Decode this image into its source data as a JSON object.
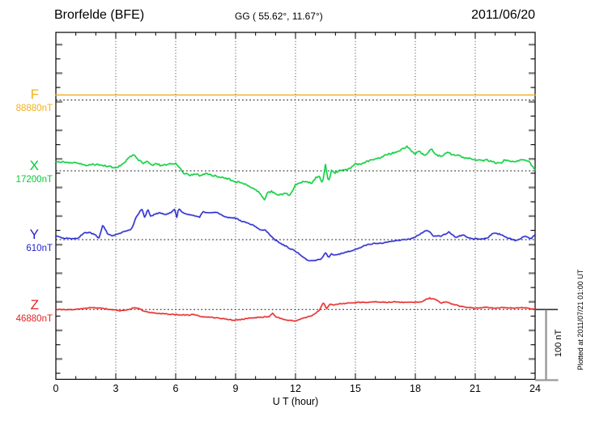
{
  "header": {
    "station": "Brorfelde (BFE)",
    "coordinates": "GG ( 55.62°,  11.67°)",
    "date": "2011/06/20"
  },
  "axes": {
    "xlabel": "U T (hour)",
    "xticks": [
      "0",
      "3",
      "6",
      "9",
      "12",
      "15",
      "18",
      "21",
      "24"
    ],
    "scale_bar_label": "100 nT",
    "plotted_at": "Plotted at 2011/07/21 01:00 UT"
  },
  "channels": [
    {
      "letter": "F",
      "value_label": "88880nT",
      "color": "#F0B01E"
    },
    {
      "letter": "X",
      "value_label": "17200nT",
      "color": "#00CC33"
    },
    {
      "letter": "Y",
      "value_label": "610nT",
      "color": "#2222CC"
    },
    {
      "letter": "Z",
      "value_label": "46880nT",
      "color": "#E62222"
    }
  ],
  "chart_data": {
    "type": "line",
    "title": "Brorfelde (BFE) magnetogram 2011/06/20",
    "xlabel": "U T (hour)",
    "x_range": [
      0,
      24
    ],
    "x_ticks": [
      0,
      3,
      6,
      9,
      12,
      15,
      18,
      21,
      24
    ],
    "grid": "vertical dotted every 3 hours, dotted horizontal reference line per channel",
    "y_scale_reference": "100 nT",
    "legend_position": "left margin channel labels",
    "series": [
      {
        "name": "F",
        "units": "nT",
        "reference_value": 88880,
        "color": "#F0B01E",
        "points": [
          [
            0,
            88887
          ],
          [
            24,
            88887
          ]
        ]
      },
      {
        "name": "X",
        "units": "nT",
        "reference_value": 17200,
        "color": "#00CC33",
        "points": [
          [
            0,
            17213
          ],
          [
            0.5,
            17212
          ],
          [
            1,
            17211
          ],
          [
            1.5,
            17208
          ],
          [
            2,
            17209
          ],
          [
            2.5,
            17207
          ],
          [
            3,
            17204
          ],
          [
            3.3,
            17208
          ],
          [
            3.6,
            17217
          ],
          [
            3.9,
            17223
          ],
          [
            4.1,
            17216
          ],
          [
            4.4,
            17210
          ],
          [
            4.6,
            17214
          ],
          [
            4.8,
            17208
          ],
          [
            5,
            17210
          ],
          [
            5.3,
            17207
          ],
          [
            5.6,
            17209
          ],
          [
            6,
            17211
          ],
          [
            6.2,
            17204
          ],
          [
            6.4,
            17197
          ],
          [
            6.7,
            17194
          ],
          [
            7,
            17196
          ],
          [
            7.2,
            17193
          ],
          [
            7.5,
            17196
          ],
          [
            7.8,
            17194
          ],
          [
            8.1,
            17192
          ],
          [
            8.4,
            17190
          ],
          [
            8.7,
            17188
          ],
          [
            9,
            17185
          ],
          [
            9.3,
            17183
          ],
          [
            9.6,
            17179
          ],
          [
            9.9,
            17175
          ],
          [
            10.1,
            17172
          ],
          [
            10.3,
            17165
          ],
          [
            10.45,
            17159
          ],
          [
            10.6,
            17169
          ],
          [
            10.8,
            17171
          ],
          [
            11,
            17168
          ],
          [
            11.2,
            17166
          ],
          [
            11.5,
            17168
          ],
          [
            11.7,
            17166
          ],
          [
            11.85,
            17172
          ],
          [
            12,
            17181
          ],
          [
            12.2,
            17182
          ],
          [
            12.5,
            17186
          ],
          [
            12.8,
            17182
          ],
          [
            13,
            17190
          ],
          [
            13.2,
            17193
          ],
          [
            13.35,
            17182
          ],
          [
            13.5,
            17208
          ],
          [
            13.65,
            17183
          ],
          [
            13.8,
            17201
          ],
          [
            13.95,
            17197
          ],
          [
            14.2,
            17200
          ],
          [
            14.5,
            17201
          ],
          [
            14.8,
            17205
          ],
          [
            15,
            17210
          ],
          [
            15.3,
            17209
          ],
          [
            15.6,
            17213
          ],
          [
            16,
            17217
          ],
          [
            16.3,
            17219
          ],
          [
            16.6,
            17223
          ],
          [
            17,
            17226
          ],
          [
            17.3,
            17230
          ],
          [
            17.6,
            17234
          ],
          [
            17.8,
            17228
          ],
          [
            18,
            17224
          ],
          [
            18.2,
            17227
          ],
          [
            18.5,
            17221
          ],
          [
            18.8,
            17232
          ],
          [
            19,
            17223
          ],
          [
            19.3,
            17220
          ],
          [
            19.6,
            17226
          ],
          [
            19.9,
            17222
          ],
          [
            20.2,
            17221
          ],
          [
            20.5,
            17218
          ],
          [
            21,
            17216
          ],
          [
            21.3,
            17214
          ],
          [
            21.6,
            17215
          ],
          [
            22,
            17211
          ],
          [
            22.3,
            17210
          ],
          [
            22.5,
            17216
          ],
          [
            22.8,
            17212
          ],
          [
            23.1,
            17214
          ],
          [
            23.4,
            17216
          ],
          [
            23.7,
            17213
          ],
          [
            24,
            17201
          ]
        ]
      },
      {
        "name": "Y",
        "units": "nT",
        "reference_value": 610,
        "color": "#2222CC",
        "points": [
          [
            0,
            615
          ],
          [
            0.4,
            612
          ],
          [
            0.8,
            611
          ],
          [
            1.1,
            612
          ],
          [
            1.4,
            619
          ],
          [
            1.7,
            620
          ],
          [
            2,
            616
          ],
          [
            2.15,
            611
          ],
          [
            2.35,
            630
          ],
          [
            2.6,
            618
          ],
          [
            2.8,
            615
          ],
          [
            3,
            617
          ],
          [
            3.3,
            620
          ],
          [
            3.6,
            623
          ],
          [
            3.8,
            625
          ],
          [
            4,
            640
          ],
          [
            4.3,
            654
          ],
          [
            4.45,
            640
          ],
          [
            4.6,
            653
          ],
          [
            4.75,
            642
          ],
          [
            4.9,
            645
          ],
          [
            5.2,
            648
          ],
          [
            5.5,
            645
          ],
          [
            5.8,
            649
          ],
          [
            5.95,
            653
          ],
          [
            6.05,
            640
          ],
          [
            6.15,
            654
          ],
          [
            6.3,
            649
          ],
          [
            6.6,
            645
          ],
          [
            6.9,
            644
          ],
          [
            7.2,
            642
          ],
          [
            7.35,
            649
          ],
          [
            7.5,
            648
          ],
          [
            7.8,
            648
          ],
          [
            8.1,
            648
          ],
          [
            8.4,
            643
          ],
          [
            8.7,
            641
          ],
          [
            9,
            640
          ],
          [
            9.3,
            636
          ],
          [
            9.6,
            633
          ],
          [
            9.9,
            630
          ],
          [
            10.2,
            624
          ],
          [
            10.5,
            623
          ],
          [
            10.9,
            611
          ],
          [
            11.3,
            604
          ],
          [
            11.7,
            598
          ],
          [
            12.1,
            592
          ],
          [
            12.6,
            581
          ],
          [
            13,
            581
          ],
          [
            13.3,
            583
          ],
          [
            13.5,
            592
          ],
          [
            13.65,
            585
          ],
          [
            13.8,
            590
          ],
          [
            14,
            588
          ],
          [
            14.5,
            592
          ],
          [
            15,
            596
          ],
          [
            15.5,
            602
          ],
          [
            16,
            605
          ],
          [
            16.3,
            605
          ],
          [
            16.7,
            607
          ],
          [
            17.2,
            609
          ],
          [
            17.9,
            612
          ],
          [
            18.3,
            619
          ],
          [
            18.5,
            623
          ],
          [
            18.7,
            622
          ],
          [
            18.9,
            615
          ],
          [
            19.3,
            615
          ],
          [
            19.7,
            621
          ],
          [
            20,
            613
          ],
          [
            20.4,
            617
          ],
          [
            20.7,
            612
          ],
          [
            21,
            611
          ],
          [
            21.3,
            611
          ],
          [
            21.6,
            612
          ],
          [
            21.9,
            619
          ],
          [
            22.2,
            618
          ],
          [
            22.6,
            613
          ],
          [
            23,
            609
          ],
          [
            23.3,
            612
          ],
          [
            23.5,
            615
          ],
          [
            23.8,
            611
          ],
          [
            24,
            617
          ]
        ]
      },
      {
        "name": "Z",
        "units": "nT",
        "reference_value": 46880,
        "color": "#E62222",
        "points": [
          [
            0,
            46880
          ],
          [
            0.5,
            46880
          ],
          [
            1,
            46880
          ],
          [
            1.5,
            46882
          ],
          [
            1.8,
            46883
          ],
          [
            2.2,
            46882
          ],
          [
            2.5,
            46881
          ],
          [
            2.8,
            46880
          ],
          [
            3.2,
            46878
          ],
          [
            3.6,
            46880
          ],
          [
            4,
            46883
          ],
          [
            4.4,
            46878
          ],
          [
            4.9,
            46875
          ],
          [
            5.4,
            46874
          ],
          [
            6,
            46873
          ],
          [
            6.5,
            46872
          ],
          [
            6.9,
            46873
          ],
          [
            7.3,
            46870
          ],
          [
            7.8,
            46869
          ],
          [
            8.4,
            46867
          ],
          [
            8.9,
            46865
          ],
          [
            9.3,
            46866
          ],
          [
            9.7,
            46868
          ],
          [
            10.2,
            46869
          ],
          [
            10.7,
            46870
          ],
          [
            10.85,
            46875
          ],
          [
            11,
            46870
          ],
          [
            11.3,
            46867
          ],
          [
            11.6,
            46865
          ],
          [
            12,
            46864
          ],
          [
            12.4,
            46868
          ],
          [
            12.8,
            46871
          ],
          [
            13.2,
            46879
          ],
          [
            13.4,
            46890
          ],
          [
            13.55,
            46881
          ],
          [
            13.75,
            46888
          ],
          [
            13.9,
            46886
          ],
          [
            14.2,
            46888
          ],
          [
            14.6,
            46889
          ],
          [
            15,
            46890
          ],
          [
            15.5,
            46890
          ],
          [
            16,
            46891
          ],
          [
            16.5,
            46890
          ],
          [
            17,
            46891
          ],
          [
            17.5,
            46890
          ],
          [
            17.9,
            46890
          ],
          [
            18.3,
            46891
          ],
          [
            18.7,
            46896
          ],
          [
            19,
            46894
          ],
          [
            19.3,
            46889
          ],
          [
            19.5,
            46891
          ],
          [
            19.8,
            46888
          ],
          [
            20.2,
            46885
          ],
          [
            20.6,
            46883
          ],
          [
            21,
            46882
          ],
          [
            21.5,
            46883
          ],
          [
            22,
            46882
          ],
          [
            22.5,
            46883
          ],
          [
            23,
            46882
          ],
          [
            23.3,
            46883
          ],
          [
            23.6,
            46882
          ],
          [
            24,
            46880
          ]
        ]
      }
    ]
  }
}
